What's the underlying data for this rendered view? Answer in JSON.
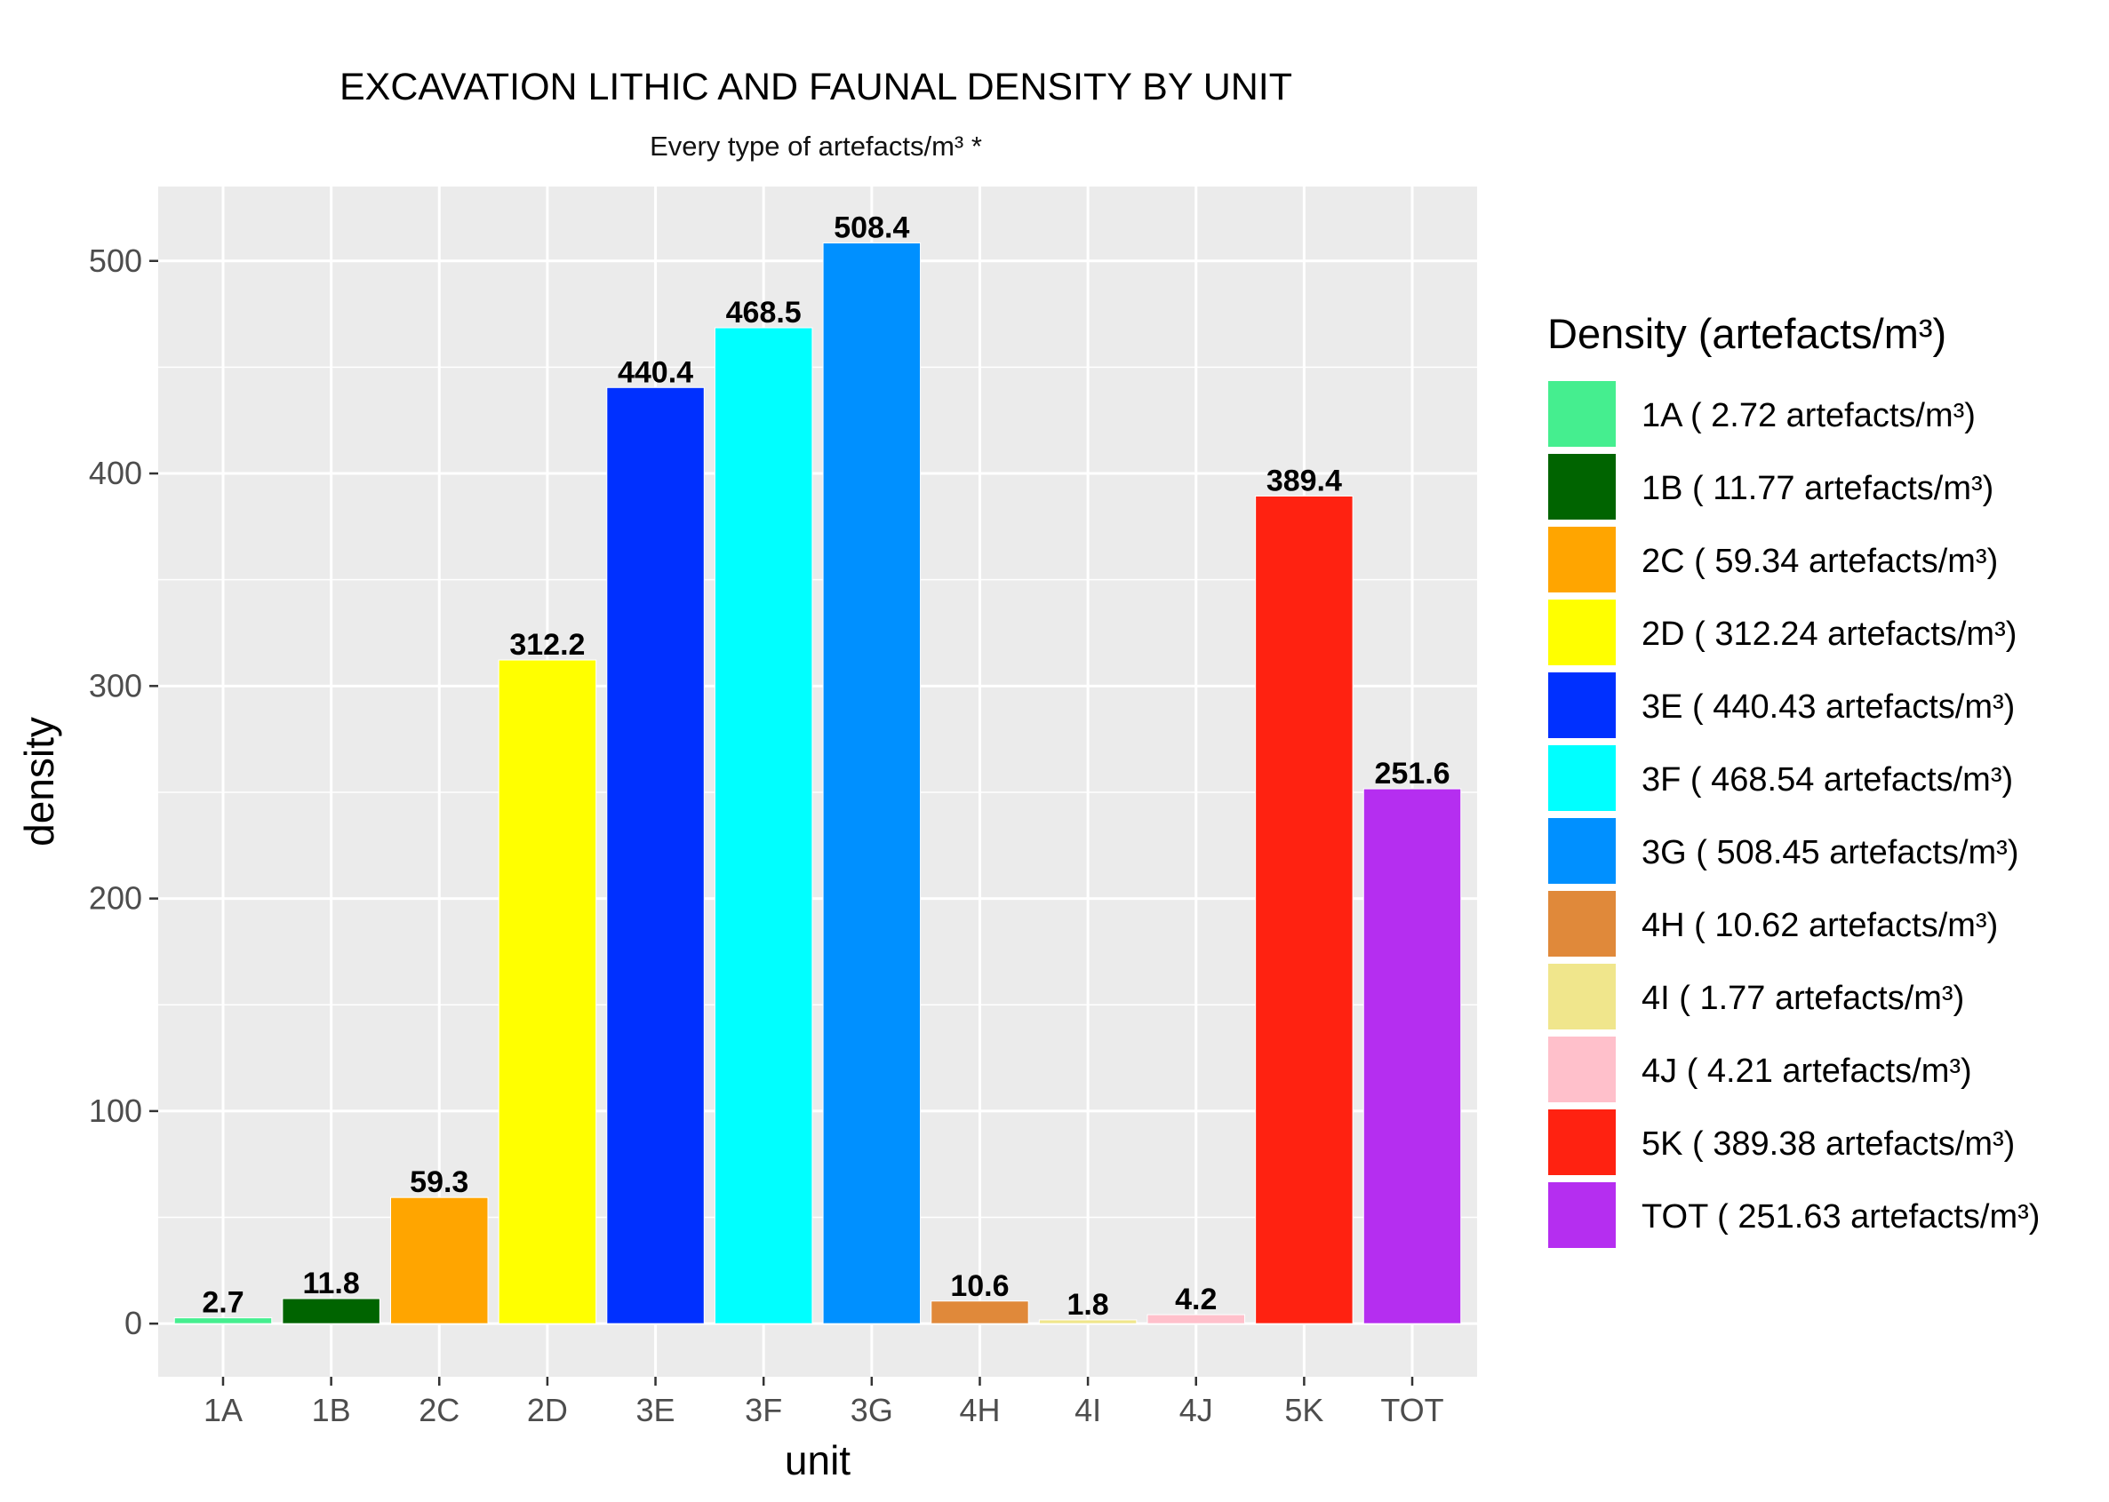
{
  "chart_data": {
    "type": "bar",
    "title": "EXCAVATION LITHIC AND FAUNAL DENSITY BY UNIT",
    "subtitle": "Every type of artefacts/m³ *",
    "xlabel": "unit",
    "ylabel": "density",
    "ylim": [
      -25,
      535
    ],
    "yticks": [
      0,
      100,
      200,
      300,
      400,
      500
    ],
    "categories": [
      "1A",
      "1B",
      "2C",
      "2D",
      "3E",
      "3F",
      "3G",
      "4H",
      "4I",
      "4J",
      "5K",
      "TOT"
    ],
    "values": [
      2.72,
      11.77,
      59.34,
      312.24,
      440.43,
      468.54,
      508.45,
      10.62,
      1.77,
      4.21,
      389.38,
      251.63
    ],
    "data_labels": [
      "2.7",
      "11.8",
      "59.3",
      "312.2",
      "440.4",
      "468.5",
      "508.4",
      "10.6",
      "1.8",
      "4.2",
      "389.4",
      "251.6"
    ],
    "colors": [
      "#45ee8f",
      "#006400",
      "#ffa500",
      "#ffff00",
      "#0030ff",
      "#00ffff",
      "#0090ff",
      "#e0893a",
      "#f0e68c",
      "#ffc0cb",
      "#ff2211",
      "#b52ef0"
    ],
    "legend": {
      "title": "Density (artefacts/m³)",
      "position": "right",
      "entries": [
        "1A ( 2.72 artefacts/m³)",
        "1B ( 11.77 artefacts/m³)",
        "2C ( 59.34 artefacts/m³)",
        "2D ( 312.24 artefacts/m³)",
        "3E ( 440.43 artefacts/m³)",
        "3F ( 468.54 artefacts/m³)",
        "3G ( 508.45 artefacts/m³)",
        "4H ( 10.62 artefacts/m³)",
        "4I ( 1.77 artefacts/m³)",
        "4J ( 4.21 artefacts/m³)",
        "5K ( 389.38 artefacts/m³)",
        "TOT ( 251.63 artefacts/m³)"
      ]
    },
    "grid": true,
    "panel_background": "#ebebeb"
  }
}
